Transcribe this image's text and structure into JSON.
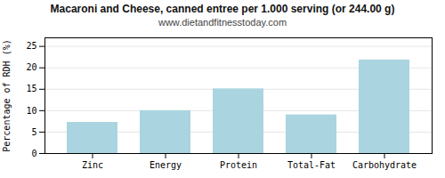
{
  "chart_data": {
    "type": "bar",
    "title": "Macaroni and Cheese, canned entree per 1.000 serving (or 244.00 g)",
    "subtitle": "www.dietandfitnesstoday.com",
    "categories": [
      "Zinc",
      "Energy",
      "Protein",
      "Total-Fat",
      "Carbohydrate"
    ],
    "values": [
      7.27,
      10.0,
      15.08,
      9.01,
      21.82
    ],
    "color": "#aad4e0",
    "ylabel": "Percentage of RDH (%)",
    "ylim": [
      0,
      27
    ],
    "yticks": [
      0,
      5,
      10,
      15,
      20,
      25
    ],
    "grid": true
  }
}
